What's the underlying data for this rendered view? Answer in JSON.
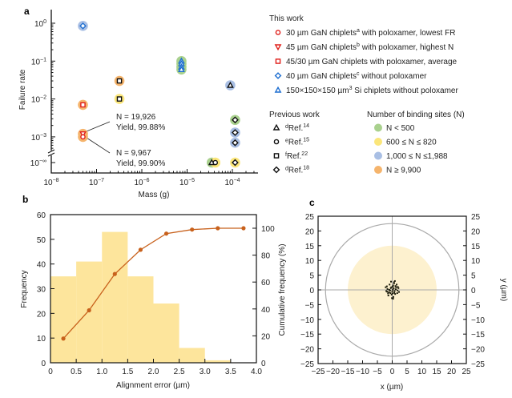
{
  "panel_labels": {
    "a": "a",
    "b": "b",
    "c": "c"
  },
  "legend": {
    "this_work_title": "This work",
    "this_work": [
      {
        "marker": "circle",
        "color": "#e0201b",
        "pre": "30 µm GaN chiplets",
        "sup": "a",
        "post": " with poloxamer, lowest FR"
      },
      {
        "marker": "triangle-down",
        "color": "#e0201b",
        "pre": "45 µm GaN chiplets",
        "sup": "b",
        "post": " with poloxamer, highest N"
      },
      {
        "marker": "square",
        "color": "#e0201b",
        "pre": "45/30 µm GaN chiplets with poloxamer, average",
        "sup": "",
        "post": ""
      },
      {
        "marker": "diamond",
        "color": "#1f6fd1",
        "pre": "40 µm GaN chiplets",
        "sup": "c",
        "post": " without poloxamer"
      },
      {
        "marker": "triangle-up",
        "color": "#1f6fd1",
        "pre": "150×150×150 µm",
        "sup": "3",
        "post": " Si chiplets without poloxamer"
      }
    ],
    "previous_work_title": "Previous work",
    "previous_work": [
      {
        "marker": "triangle-up",
        "sup": "d",
        "text": "Ref.",
        "ref": "14"
      },
      {
        "marker": "circle",
        "sup": "e",
        "text": "Ref.",
        "ref": "15"
      },
      {
        "marker": "square",
        "sup": "f",
        "text": "Ref.",
        "ref": "22"
      },
      {
        "marker": "diamond",
        "sup": "d",
        "text": "Ref.",
        "ref": "18"
      }
    ],
    "binding_sites_title": "Number of binding sites (N)",
    "binding_sites": [
      {
        "label": "N < 500",
        "color": "#a9d18e"
      },
      {
        "label": "600 ≤ N ≤ 820",
        "color": "#fbe67a"
      },
      {
        "label": "1,000 ≤ N ≤1,988",
        "color": "#a9bfe4"
      },
      {
        "label": "N ≥ 9,900",
        "color": "#f5b46c"
      }
    ]
  },
  "chart_data": [
    {
      "id": "a",
      "type": "scatter",
      "xlabel": "Mass (g)",
      "ylabel": "Failure rate",
      "xscale": "log",
      "yscale": "log",
      "xlim": [
        1e-08,
        0.0005
      ],
      "x_ticks": [
        {
          "base": "10",
          "exp": "−8"
        },
        {
          "base": "10",
          "exp": "−7"
        },
        {
          "base": "10",
          "exp": "−6"
        },
        {
          "base": "10",
          "exp": "−5"
        },
        {
          "base": "10",
          "exp": "−4"
        }
      ],
      "y_ticks": [
        {
          "base": "10",
          "exp": "0"
        },
        {
          "base": "10",
          "exp": "−1"
        },
        {
          "base": "10",
          "exp": "−2"
        },
        {
          "base": "10",
          "exp": "−3"
        },
        {
          "base": "10",
          "exp": "−∞"
        }
      ],
      "points": [
        {
          "x": 5e-08,
          "y": 0.85,
          "marker": "diamond",
          "color": "#1f6fd1",
          "group": "N ≥ 1,000"
        },
        {
          "x": 5e-08,
          "y": 0.007,
          "marker": "square",
          "color": "#e0201b",
          "group": "N ≥ 9,900"
        },
        {
          "x": 5e-08,
          "y": 0.0012,
          "marker": "triangle-down",
          "color": "#e0201b",
          "group": "N ≥ 9,900"
        },
        {
          "x": 5e-08,
          "y": 0.001,
          "marker": "circle",
          "color": "#e0201b",
          "group": "N ≥ 9,900"
        },
        {
          "x": 3.2e-07,
          "y": 0.03,
          "marker": "square",
          "color": "#111111",
          "group": "N ≥ 9,900"
        },
        {
          "x": 3.2e-07,
          "y": 0.01,
          "marker": "square",
          "color": "#111111",
          "group": "600 ≤ N ≤ 820"
        },
        {
          "x": 7.5e-06,
          "y": 0.1,
          "marker": "triangle-up",
          "color": "#1f6fd1",
          "group": "N < 500"
        },
        {
          "x": 7.5e-06,
          "y": 0.085,
          "marker": "triangle-up",
          "color": "#1f6fd1",
          "group": "N < 500"
        },
        {
          "x": 7.5e-06,
          "y": 0.07,
          "marker": "triangle-up",
          "color": "#1f6fd1",
          "group": "N < 500"
        },
        {
          "x": 7.5e-06,
          "y": 0.06,
          "marker": "triangle-up",
          "color": "#1f6fd1",
          "group": "N < 500"
        },
        {
          "x": 9e-05,
          "y": 0.023,
          "marker": "triangle-up",
          "color": "#111111",
          "group": "1,000 ≤ N ≤1,988"
        },
        {
          "x": 0.000115,
          "y": 0.0028,
          "marker": "diamond",
          "color": "#111111",
          "group": "N < 500"
        },
        {
          "x": 0.000115,
          "y": 0.0013,
          "marker": "diamond",
          "color": "#111111",
          "group": "1,000 ≤ N ≤1,988"
        },
        {
          "x": 0.000115,
          "y": 0.0007,
          "marker": "diamond",
          "color": "#111111",
          "group": "1,000 ≤ N ≤1,988"
        },
        {
          "x": 0.000115,
          "y": 0,
          "marker": "diamond",
          "color": "#111111",
          "group": "600 ≤ N ≤ 820"
        },
        {
          "x": 3.5e-05,
          "y": 0,
          "marker": "triangle-up",
          "color": "#111111",
          "group": "N < 500"
        },
        {
          "x": 4.2e-05,
          "y": 0,
          "marker": "circle",
          "color": "#111111",
          "group": "600 ≤ N ≤ 820"
        }
      ],
      "annotations": [
        {
          "line1": "N = 19,926",
          "line2": "Yield, 99.88%"
        },
        {
          "line1": "N = 9,967",
          "line2": "Yield, 99.90%"
        }
      ]
    },
    {
      "id": "b",
      "type": "bar",
      "xlabel": "Alignment error (µm)",
      "ylabel": "Frequency",
      "y2label": "Cumulative frequency (%)",
      "xlim": [
        0,
        4.0
      ],
      "ylim": [
        0,
        60
      ],
      "y2lim": [
        0,
        110
      ],
      "x_ticks": [
        "0",
        "0.5",
        "1.0",
        "1.5",
        "2.0",
        "2.5",
        "3.0",
        "3.5",
        "4.0"
      ],
      "y_ticks": [
        "0",
        "10",
        "20",
        "30",
        "40",
        "50",
        "60"
      ],
      "y2_ticks": [
        "0",
        "20",
        "40",
        "60",
        "80",
        "100"
      ],
      "bins": [
        [
          0,
          0.5
        ],
        [
          0.5,
          1.0
        ],
        [
          1.0,
          1.5
        ],
        [
          1.5,
          2.0
        ],
        [
          2.0,
          2.5
        ],
        [
          2.5,
          3.0
        ],
        [
          3.0,
          3.5
        ],
        [
          3.5,
          4.0
        ]
      ],
      "frequency": [
        35,
        41,
        53,
        35,
        24,
        6,
        1,
        0
      ],
      "cumulative_x": [
        0.25,
        0.75,
        1.25,
        1.75,
        2.25,
        2.75,
        3.25,
        3.75
      ],
      "cumulative_percent": [
        18,
        39,
        66,
        84,
        96,
        99,
        100,
        100
      ],
      "bar_color": "#fde59c",
      "line_color": "#c8611c"
    },
    {
      "id": "c",
      "type": "scatter",
      "xlabel": "x (µm)",
      "ylabel": "y (µm)",
      "left_axis_label": "Cumulative frequency (%)",
      "xlim": [
        -25,
        25
      ],
      "ylim": [
        -25,
        25
      ],
      "x_ticks": [
        "−25",
        "−20",
        "−15",
        "−10",
        "−5",
        "0",
        "5",
        "10",
        "15",
        "20",
        "25"
      ],
      "y_ticks": [
        "25",
        "20",
        "15",
        "10",
        "5",
        "0",
        "−5",
        "−10",
        "−15",
        "−20",
        "−25"
      ],
      "outer_circle_radius": 22.5,
      "shaded_circle_radius": 15,
      "shaded_color": "#fdf1cf",
      "points": [
        [
          0.2,
          0.1
        ],
        [
          -0.5,
          0.6
        ],
        [
          0.8,
          -0.4
        ],
        [
          -1.1,
          -0.8
        ],
        [
          1.3,
          0.9
        ],
        [
          0.3,
          1.5
        ],
        [
          -0.2,
          -1.6
        ],
        [
          1.8,
          -0.2
        ],
        [
          -1.6,
          0.3
        ],
        [
          0.6,
          2.2
        ],
        [
          -0.9,
          1.8
        ],
        [
          1.0,
          -1.4
        ],
        [
          -1.3,
          -1.9
        ],
        [
          2.1,
          0.6
        ],
        [
          -2.0,
          -0.4
        ],
        [
          0.4,
          -2.4
        ],
        [
          0.9,
          3.0
        ],
        [
          -0.4,
          2.8
        ],
        [
          1.5,
          1.8
        ],
        [
          -1.8,
          1.2
        ],
        [
          0.0,
          -0.5
        ],
        [
          0.5,
          0.5
        ],
        [
          -0.7,
          -0.2
        ],
        [
          1.2,
          0.2
        ],
        [
          -0.3,
          0.9
        ],
        [
          0.7,
          -1.0
        ],
        [
          -1.4,
          -1.2
        ],
        [
          1.7,
          -1.1
        ],
        [
          -0.1,
          -2.8
        ],
        [
          2.3,
          -0.7
        ],
        [
          -2.2,
          0.9
        ],
        [
          0.2,
          1.1
        ],
        [
          -0.6,
          -1.1
        ],
        [
          1.1,
          1.3
        ],
        [
          -1.0,
          0.0
        ],
        [
          0.1,
          -1.2
        ],
        [
          1.9,
          1.0
        ],
        [
          -1.7,
          -0.6
        ],
        [
          0.6,
          2.6
        ],
        [
          0.3,
          -3.0
        ]
      ]
    }
  ]
}
